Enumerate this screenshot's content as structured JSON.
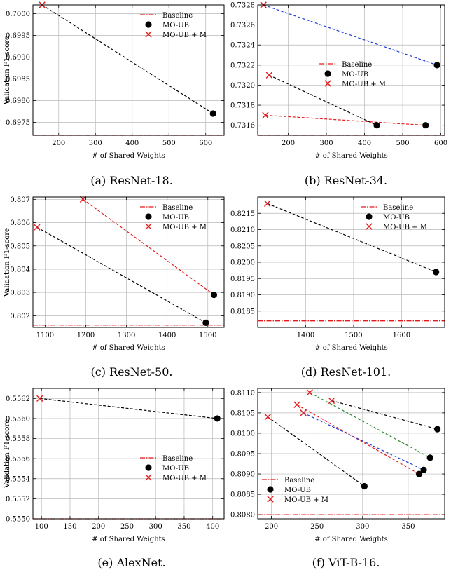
{
  "colors": {
    "baseline": "#e41a1c",
    "marker_mo_ub": "#000000",
    "marker_mo_ub_m": "#e41a1c",
    "dashed_black": "#000000",
    "dashed_red": "#e41a1c",
    "dashed_blue": "#1f3fd6",
    "dashed_green": "#2e8b2e",
    "grid": "#b8b8b8"
  },
  "legend": {
    "baseline": "Baseline",
    "mo_ub": "MO-UB",
    "mo_ub_m": "MO-UB + M"
  },
  "chart_data": [
    {
      "type": "scatter",
      "caption": "(a) ResNet-18.",
      "xlabel": "# of Shared Weights",
      "ylabel": "Validation F1-score",
      "xlim": [
        130,
        650
      ],
      "ylim": [
        0.6972,
        0.7002
      ],
      "xticks": [
        200,
        300,
        400,
        500,
        600
      ],
      "yticks": [
        0.6975,
        0.698,
        0.6985,
        0.699,
        0.6995,
        0.7
      ],
      "ydecimals": 4,
      "grid": true,
      "legend_position": "top-right",
      "baseline": 0.6972,
      "mo_ub_points": [
        [
          620,
          0.6977
        ]
      ],
      "mo_ub_m_points": [
        [
          155,
          0.7002
        ]
      ],
      "lines": [
        {
          "color": "dashed_black",
          "points": [
            [
              155,
              0.7002
            ],
            [
              620,
              0.6977
            ]
          ]
        }
      ]
    },
    {
      "type": "scatter",
      "caption": "(b) ResNet-34.",
      "xlabel": "# of Shared Weights",
      "ylabel": "Validation F1-score",
      "xlim": [
        120,
        610
      ],
      "ylim": [
        0.7315,
        0.7328
      ],
      "xticks": [
        200,
        300,
        400,
        500,
        600
      ],
      "yticks": [
        0.7316,
        0.7318,
        0.732,
        0.7322,
        0.7324,
        0.7326,
        0.7328
      ],
      "ydecimals": 4,
      "grid": true,
      "legend_position": "center",
      "baseline": 0.7315,
      "mo_ub_points": [
        [
          590,
          0.7322
        ],
        [
          432,
          0.7316
        ],
        [
          560,
          0.7316
        ]
      ],
      "mo_ub_m_points": [
        [
          135,
          0.7328
        ],
        [
          150,
          0.7321
        ],
        [
          140,
          0.7317
        ]
      ],
      "lines": [
        {
          "color": "dashed_blue",
          "points": [
            [
              135,
              0.7328
            ],
            [
              590,
              0.7322
            ]
          ]
        },
        {
          "color": "dashed_black",
          "points": [
            [
              150,
              0.7321
            ],
            [
              432,
              0.7316
            ]
          ]
        },
        {
          "color": "dashed_red",
          "points": [
            [
              140,
              0.7317
            ],
            [
              560,
              0.7316
            ]
          ]
        }
      ]
    },
    {
      "type": "scatter",
      "caption": "(c) ResNet-50.",
      "xlabel": "# of Shared Weights",
      "ylabel": "Validation F1-score",
      "xlim": [
        1070,
        1540
      ],
      "ylim": [
        0.8015,
        0.8071
      ],
      "xticks": [
        1100,
        1200,
        1300,
        1400,
        1500
      ],
      "yticks": [
        0.802,
        0.803,
        0.804,
        0.805,
        0.806,
        0.807
      ],
      "ydecimals": 3,
      "grid": true,
      "legend_position": "top-right",
      "baseline": 0.8016,
      "mo_ub_points": [
        [
          1495,
          0.8017
        ],
        [
          1515,
          0.8029
        ]
      ],
      "mo_ub_m_points": [
        [
          1080,
          0.8058
        ],
        [
          1193,
          0.807
        ]
      ],
      "lines": [
        {
          "color": "dashed_black",
          "points": [
            [
              1080,
              0.8058
            ],
            [
              1495,
              0.8017
            ]
          ]
        },
        {
          "color": "dashed_red",
          "points": [
            [
              1193,
              0.807
            ],
            [
              1515,
              0.8029
            ]
          ]
        }
      ]
    },
    {
      "type": "scatter",
      "caption": "(d) ResNet-101.",
      "xlabel": "# of Shared Weights",
      "ylabel": "Validation F1-score",
      "xlim": [
        1300,
        1690
      ],
      "ylim": [
        0.818,
        0.822
      ],
      "xticks": [
        1400,
        1500,
        1600
      ],
      "yticks": [
        0.8185,
        0.819,
        0.8195,
        0.82,
        0.8205,
        0.821,
        0.8215
      ],
      "ydecimals": 4,
      "grid": true,
      "legend_position": "top-right",
      "baseline": 0.8182,
      "mo_ub_points": [
        [
          1672,
          0.8197
        ]
      ],
      "mo_ub_m_points": [
        [
          1320,
          0.8218
        ]
      ],
      "lines": [
        {
          "color": "dashed_black",
          "points": [
            [
              1320,
              0.8218
            ],
            [
              1672,
              0.8197
            ]
          ]
        }
      ]
    },
    {
      "type": "scatter",
      "caption": "(e) AlexNet.",
      "xlabel": "# of Shared Weights",
      "ylabel": "Validation F1-score",
      "xlim": [
        85,
        420
      ],
      "ylim": [
        0.555,
        0.5563
      ],
      "xticks": [
        100,
        150,
        200,
        250,
        300,
        350,
        400
      ],
      "yticks": [
        0.555,
        0.5552,
        0.5554,
        0.5556,
        0.5558,
        0.556,
        0.5562
      ],
      "ydecimals": 4,
      "grid": true,
      "legend_position": "center-right",
      "baseline": 0.555,
      "mo_ub_points": [
        [
          408,
          0.556
        ]
      ],
      "mo_ub_m_points": [
        [
          97,
          0.5562
        ]
      ],
      "lines": [
        {
          "color": "dashed_black",
          "points": [
            [
              97,
              0.5562
            ],
            [
              408,
              0.556
            ]
          ]
        }
      ]
    },
    {
      "type": "scatter",
      "caption": "(f) ViT-B-16.",
      "xlabel": "# of Shared Weights",
      "ylabel": "Validation F1-score",
      "xlim": [
        185,
        390
      ],
      "ylim": [
        0.8079,
        0.8111
      ],
      "xticks": [
        200,
        250,
        300,
        350
      ],
      "yticks": [
        0.808,
        0.8085,
        0.809,
        0.8095,
        0.81,
        0.8105,
        0.811
      ],
      "ydecimals": 4,
      "grid": true,
      "legend_position": "bottom-left",
      "baseline": 0.808,
      "mo_ub_points": [
        [
          302,
          0.8087
        ],
        [
          362,
          0.809
        ],
        [
          367,
          0.8091
        ],
        [
          374,
          0.8094
        ],
        [
          382,
          0.8101
        ]
      ],
      "mo_ub_m_points": [
        [
          196,
          0.8104
        ],
        [
          228,
          0.8107
        ],
        [
          235,
          0.8105
        ],
        [
          242,
          0.811
        ],
        [
          266,
          0.8108
        ]
      ],
      "lines": [
        {
          "color": "dashed_black",
          "points": [
            [
              196,
              0.8104
            ],
            [
              302,
              0.8087
            ]
          ]
        },
        {
          "color": "dashed_red",
          "points": [
            [
              228,
              0.8107
            ],
            [
              362,
              0.809
            ]
          ]
        },
        {
          "color": "dashed_blue",
          "points": [
            [
              235,
              0.8105
            ],
            [
              367,
              0.8091
            ]
          ]
        },
        {
          "color": "dashed_green",
          "points": [
            [
              242,
              0.811
            ],
            [
              374,
              0.8094
            ]
          ]
        },
        {
          "color": "dashed_black",
          "points": [
            [
              266,
              0.8108
            ],
            [
              382,
              0.8101
            ]
          ]
        }
      ]
    }
  ]
}
